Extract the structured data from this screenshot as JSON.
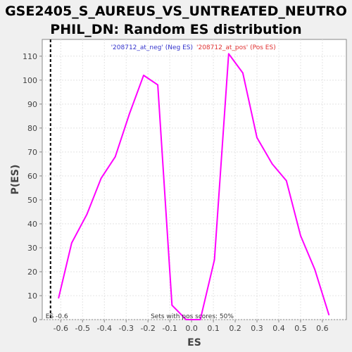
{
  "chart_data": {
    "type": "line",
    "title": [
      "GSE2405_S_AUREUS_VS_UNTREATED_NEUTRO",
      "PHIL_DN: Random ES distribution"
    ],
    "xlabel": "ES",
    "ylabel": "P(ES)",
    "xlim": [
      -0.685,
      0.71
    ],
    "ylim": [
      0,
      117
    ],
    "xticks": [
      -0.6,
      -0.5,
      -0.4,
      -0.3,
      -0.2,
      -0.1,
      0.0,
      0.1,
      0.2,
      0.3,
      0.4,
      0.5,
      0.6
    ],
    "xtick_labels": [
      "-0.6",
      "-0.5",
      "-0.4",
      "-0.3",
      "-0.2",
      "-0.1",
      "0.0",
      "0.1",
      "0.2",
      "0.3",
      "0.4",
      "0.5",
      "0.6"
    ],
    "yticks": [
      0,
      10,
      20,
      30,
      40,
      50,
      60,
      70,
      80,
      90,
      100,
      110
    ],
    "ytick_labels": [
      "0",
      "10",
      "20",
      "30",
      "40",
      "50",
      "60",
      "70",
      "80",
      "90",
      "100",
      "110"
    ],
    "grid": true,
    "series": [
      {
        "color": "#ff00ff",
        "x": [
          -0.61,
          -0.55,
          -0.48,
          -0.415,
          -0.35,
          -0.285,
          -0.22,
          -0.155,
          -0.09,
          -0.025,
          0.04,
          0.105,
          0.17,
          0.235,
          0.3,
          0.37,
          0.435,
          0.5,
          0.565,
          0.63
        ],
        "y": [
          9,
          32,
          44,
          59,
          68,
          86,
          102,
          98,
          6,
          0,
          0,
          25,
          111,
          103,
          76,
          65,
          58,
          35,
          21,
          2
        ]
      }
    ],
    "reference_line": {
      "x": -0.647,
      "label": "ES -0.6",
      "color": "#000000",
      "style": "dashed"
    },
    "legend": {
      "position": "top-center",
      "neg": {
        "text": "'208712_at_neg' (Neg ES)",
        "color": "#3333cc"
      },
      "pos": {
        "text": "'208712_at_pos' (Pos ES)",
        "color": "#e03030"
      }
    },
    "annotation": "Sets with pos scores: 50%"
  }
}
